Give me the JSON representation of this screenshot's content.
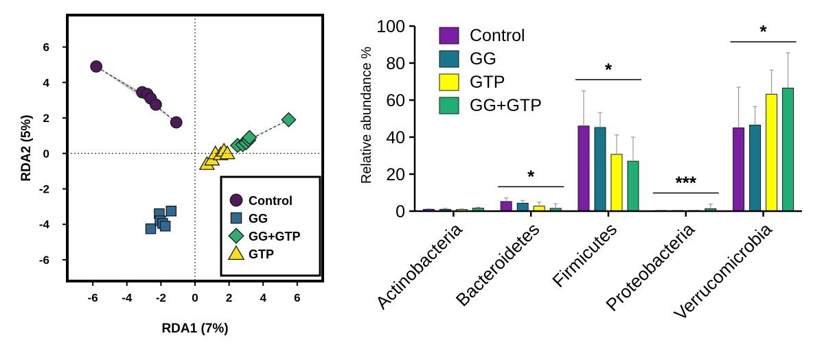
{
  "chart_data": [
    {
      "type": "scatter",
      "xlabel": "RDA1 (7%)",
      "ylabel": "RDA2 (5%)",
      "xlim": [
        -7.5,
        7.5
      ],
      "ylim": [
        -7.2,
        7.8
      ],
      "xticks": [
        -6,
        -4,
        -2,
        0,
        2,
        4,
        6
      ],
      "yticks": [
        -6,
        -4,
        -2,
        0,
        2,
        4,
        6
      ],
      "xtick_labels": [
        "-6",
        "-4",
        "-2",
        "0",
        "2",
        "4",
        "6"
      ],
      "ytick_labels": [
        "-6",
        "-4",
        "-2",
        "0",
        "2",
        "4",
        "6"
      ],
      "grid": false,
      "legend_position": "bottom-right",
      "series": [
        {
          "name": "Control",
          "marker": "circle",
          "color": "#4B1A57",
          "x": [
            -5.8,
            -3.1,
            -2.8,
            -2.6,
            -2.3,
            -1.1
          ],
          "y": [
            4.9,
            3.45,
            3.35,
            3.1,
            2.75,
            1.75
          ]
        },
        {
          "name": "GG",
          "marker": "square",
          "color": "#2E6A92",
          "x": [
            -2.6,
            -2.1,
            -2.05,
            -1.9,
            -1.75,
            -1.4
          ],
          "y": [
            -4.25,
            -3.4,
            -3.8,
            -3.95,
            -4.1,
            -3.25
          ]
        },
        {
          "name": "GG+GTP",
          "marker": "diamond",
          "color": "#2EAE6E",
          "x": [
            2.5,
            2.8,
            3.0,
            3.15,
            3.2,
            5.5
          ],
          "y": [
            0.45,
            0.5,
            0.6,
            0.75,
            0.9,
            1.9
          ]
        },
        {
          "name": "GTP",
          "marker": "triangle",
          "color": "#F7E01A",
          "x": [
            0.7,
            1.0,
            1.2,
            1.5,
            1.7,
            1.9
          ],
          "y": [
            -0.6,
            -0.35,
            0.0,
            -0.05,
            0.15,
            0.0
          ]
        }
      ]
    },
    {
      "type": "bar",
      "ylabel": "Relative abundance %",
      "ylim": [
        0,
        100
      ],
      "yticks": [
        0,
        20,
        40,
        60,
        80,
        100
      ],
      "ytick_labels": [
        "0",
        "20",
        "40",
        "60",
        "80",
        "100"
      ],
      "categories": [
        "Actinobacteria",
        "Bacteroidetes",
        "Firmicutes",
        "Proteobacteria",
        "Verrucomicrobia"
      ],
      "legend_position": "top-left",
      "series": [
        {
          "name": "Control",
          "color": "#7B1FA2",
          "values": [
            1.0,
            5.2,
            46.0,
            0.1,
            45.0
          ],
          "errors": [
            0.3,
            2.0,
            19.0,
            0.1,
            22.0
          ]
        },
        {
          "name": "GG",
          "color": "#17768A",
          "values": [
            1.0,
            4.3,
            45.2,
            0.1,
            46.5
          ],
          "errors": [
            0.5,
            1.5,
            8.0,
            0.1,
            10.0
          ]
        },
        {
          "name": "GTP",
          "color": "#FFFF00",
          "values": [
            0.9,
            2.7,
            30.7,
            0.1,
            63.2
          ],
          "errors": [
            0.3,
            2.2,
            10.5,
            0.1,
            13.0
          ]
        },
        {
          "name": "GG+GTP",
          "color": "#1FAF75",
          "values": [
            1.6,
            1.5,
            27.0,
            1.3,
            66.5
          ],
          "errors": [
            0.5,
            2.5,
            13.0,
            2.5,
            19.0
          ]
        }
      ],
      "annotations": [
        {
          "category": "Bacteroidetes",
          "label": "*"
        },
        {
          "category": "Firmicutes",
          "label": "*"
        },
        {
          "category": "Proteobacteria",
          "label": "***"
        },
        {
          "category": "Verrucomicrobia",
          "label": "*"
        }
      ]
    }
  ]
}
